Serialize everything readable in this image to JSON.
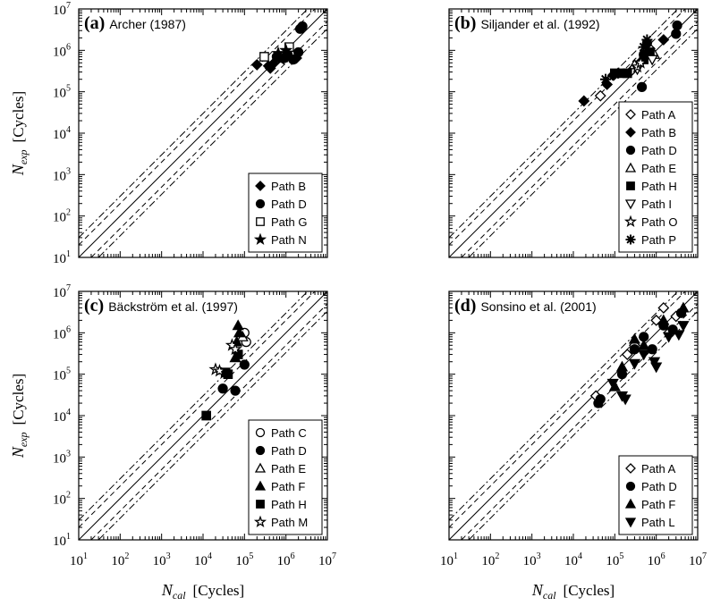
{
  "figure": {
    "x_axis": {
      "var": "N",
      "sub": "cal",
      "unit": "[Cycles]"
    },
    "y_axis": {
      "var": "N",
      "sub": "exp",
      "unit": "[Cycles]"
    }
  },
  "chart_data": [
    {
      "type": "scatter",
      "panel": "(a)",
      "title": "Archer (1987)",
      "xscale": "log",
      "yscale": "log",
      "xlim": [
        10,
        10000000
      ],
      "ylim": [
        10,
        10000000
      ],
      "x_ticks": [
        1,
        2,
        3,
        4,
        5,
        6,
        7
      ],
      "y_ticks": [
        1,
        2,
        3,
        4,
        5,
        6,
        7
      ],
      "show_x_ticklabels": false,
      "show_y_ticklabels": true,
      "reference_lines": [
        "y = x (solid)",
        "y = 2x and y = x/2 (dashed)",
        "y = 3x and y = x/3 (dash-dot)"
      ],
      "legend_position": "bottom-right",
      "series": [
        {
          "name": "Path B",
          "marker": "diamond-filled",
          "points": [
            [
              200000,
              450000
            ],
            [
              380000,
              420000
            ],
            [
              420000,
              370000
            ],
            [
              500000,
              480000
            ],
            [
              1800000,
              650000
            ]
          ]
        },
        {
          "name": "Path D",
          "marker": "circle-filled",
          "points": [
            [
              600000,
              700000
            ],
            [
              900000,
              650000
            ],
            [
              1100000,
              800000
            ],
            [
              1500000,
              600000
            ],
            [
              2000000,
              900000
            ],
            [
              2200000,
              3300000
            ],
            [
              2500000,
              3800000
            ]
          ]
        },
        {
          "name": "Path G",
          "marker": "square-open",
          "points": [
            [
              300000,
              700000
            ],
            [
              1200000,
              1200000
            ]
          ]
        },
        {
          "name": "Path N",
          "marker": "star-filled",
          "points": [
            [
              650000,
              850000
            ],
            [
              750000,
              600000
            ],
            [
              900000,
              700000
            ],
            [
              1000000,
              1000000
            ]
          ]
        }
      ]
    },
    {
      "type": "scatter",
      "panel": "(b)",
      "title": "Siljander et al. (1992)",
      "xscale": "log",
      "yscale": "log",
      "xlim": [
        10,
        10000000
      ],
      "ylim": [
        10,
        10000000
      ],
      "x_ticks": [
        1,
        2,
        3,
        4,
        5,
        6,
        7
      ],
      "y_ticks": [
        1,
        2,
        3,
        4,
        5,
        6,
        7
      ],
      "show_x_ticklabels": false,
      "show_y_ticklabels": false,
      "reference_lines": [
        "y = x (solid)",
        "y = 2x and y = x/2 (dashed)",
        "y = 3x and y = x/3 (dash-dot)"
      ],
      "legend_position": "bottom-right",
      "series": [
        {
          "name": "Path A",
          "marker": "diamond-open",
          "points": [
            [
              45000,
              80000
            ],
            [
              250000,
              320000
            ],
            [
              700000,
              1100000
            ]
          ]
        },
        {
          "name": "Path B",
          "marker": "diamond-filled",
          "points": [
            [
              18000,
              60000
            ],
            [
              65000,
              150000
            ],
            [
              90000,
              250000
            ],
            [
              120000,
              280000
            ],
            [
              400000,
              500000
            ],
            [
              1500000,
              1800000
            ]
          ]
        },
        {
          "name": "Path D",
          "marker": "circle-filled",
          "points": [
            [
              450000,
              130000
            ],
            [
              500000,
              800000
            ],
            [
              600000,
              1500000
            ],
            [
              3000000,
              2500000
            ],
            [
              3200000,
              4000000
            ]
          ]
        },
        {
          "name": "Path E",
          "marker": "triangle-up-open",
          "points": [
            [
              300000,
              450000
            ],
            [
              900000,
              800000
            ]
          ]
        },
        {
          "name": "Path H",
          "marker": "square-filled",
          "points": [
            [
              100000,
              280000
            ],
            [
              150000,
              280000
            ],
            [
              200000,
              280000
            ],
            [
              500000,
              600000
            ],
            [
              700000,
              900000
            ]
          ]
        },
        {
          "name": "Path I",
          "marker": "triangle-down-open",
          "points": [
            [
              350000,
              350000
            ],
            [
              800000,
              600000
            ]
          ]
        },
        {
          "name": "Path O",
          "marker": "star-open",
          "points": [
            [
              350000,
              400000
            ],
            [
              420000,
              500000
            ]
          ]
        },
        {
          "name": "Path P",
          "marker": "asterisk",
          "points": [
            [
              60000,
              200000
            ],
            [
              500000,
              1200000
            ],
            [
              600000,
              1800000
            ]
          ]
        }
      ]
    },
    {
      "type": "scatter",
      "panel": "(c)",
      "title": "Bäckström et al. (1997)",
      "xscale": "log",
      "yscale": "log",
      "xlim": [
        10,
        10000000
      ],
      "ylim": [
        10,
        10000000
      ],
      "x_ticks": [
        1,
        2,
        3,
        4,
        5,
        6,
        7
      ],
      "y_ticks": [
        1,
        2,
        3,
        4,
        5,
        6,
        7
      ],
      "show_x_ticklabels": true,
      "show_y_ticklabels": true,
      "reference_lines": [
        "y = x (solid)",
        "y = 2x and y = x/2 (dashed)",
        "y = 3x and y = x/3 (dash-dot)"
      ],
      "legend_position": "bottom-right",
      "series": [
        {
          "name": "Path C",
          "marker": "circle-open",
          "points": [
            [
              100000,
              1000000
            ],
            [
              110000,
              600000
            ]
          ]
        },
        {
          "name": "Path D",
          "marker": "circle-filled",
          "points": [
            [
              30000,
              45000
            ],
            [
              60000,
              40000
            ],
            [
              100000,
              170000
            ]
          ]
        },
        {
          "name": "Path E",
          "marker": "triangle-up-open",
          "points": [
            [
              90000,
              800000
            ]
          ]
        },
        {
          "name": "Path F",
          "marker": "triangle-up-filled",
          "points": [
            [
              60000,
              250000
            ],
            [
              65000,
              600000
            ],
            [
              70000,
              1500000
            ],
            [
              75000,
              1000000
            ]
          ]
        },
        {
          "name": "Path H",
          "marker": "square-filled",
          "points": [
            [
              12000,
              10000
            ],
            [
              35000,
              110000
            ],
            [
              40000,
              100000
            ],
            [
              70000,
              300000
            ]
          ]
        },
        {
          "name": "Path M",
          "marker": "star-open",
          "points": [
            [
              20000,
              130000
            ],
            [
              25000,
              120000
            ],
            [
              50000,
              500000
            ],
            [
              60000,
              400000
            ]
          ]
        }
      ]
    },
    {
      "type": "scatter",
      "panel": "(d)",
      "title": "Sonsino et al. (2001)",
      "xscale": "log",
      "yscale": "log",
      "xlim": [
        10,
        10000000
      ],
      "ylim": [
        10,
        10000000
      ],
      "x_ticks": [
        1,
        2,
        3,
        4,
        5,
        6,
        7
      ],
      "y_ticks": [
        1,
        2,
        3,
        4,
        5,
        6,
        7
      ],
      "show_x_ticklabels": true,
      "show_y_ticklabels": false,
      "reference_lines": [
        "y = x (solid)",
        "y = 2x and y = x/2 (dashed)",
        "y = 3x and y = x/3 (dash-dot)"
      ],
      "legend_position": "bottom-right",
      "series": [
        {
          "name": "Path A",
          "marker": "diamond-open",
          "points": [
            [
              35000,
              30000
            ],
            [
              200000,
              300000
            ],
            [
              300000,
              500000
            ],
            [
              1000000,
              2000000
            ],
            [
              1500000,
              4000000
            ],
            [
              2000000,
              1000000
            ],
            [
              3000000,
              2500000
            ]
          ]
        },
        {
          "name": "Path D",
          "marker": "circle-filled",
          "points": [
            [
              40000,
              20000
            ],
            [
              45000,
              25000
            ],
            [
              150000,
              100000
            ],
            [
              300000,
              400000
            ],
            [
              500000,
              800000
            ],
            [
              800000,
              400000
            ],
            [
              1500000,
              1500000
            ],
            [
              2500000,
              1200000
            ],
            [
              4000000,
              3000000
            ]
          ]
        },
        {
          "name": "Path F",
          "marker": "triangle-up-filled",
          "points": [
            [
              100000,
              50000
            ],
            [
              150000,
              150000
            ],
            [
              300000,
              700000
            ],
            [
              500000,
              500000
            ],
            [
              1500000,
              2000000
            ],
            [
              4500000,
              4000000
            ]
          ]
        },
        {
          "name": "Path L",
          "marker": "triangle-down-filled",
          "points": [
            [
              90000,
              60000
            ],
            [
              150000,
              30000
            ],
            [
              180000,
              25000
            ],
            [
              300000,
              180000
            ],
            [
              500000,
              300000
            ],
            [
              900000,
              200000
            ],
            [
              1000000,
              150000
            ],
            [
              2000000,
              800000
            ],
            [
              3500000,
              900000
            ],
            [
              4500000,
              1500000
            ]
          ]
        }
      ]
    }
  ]
}
